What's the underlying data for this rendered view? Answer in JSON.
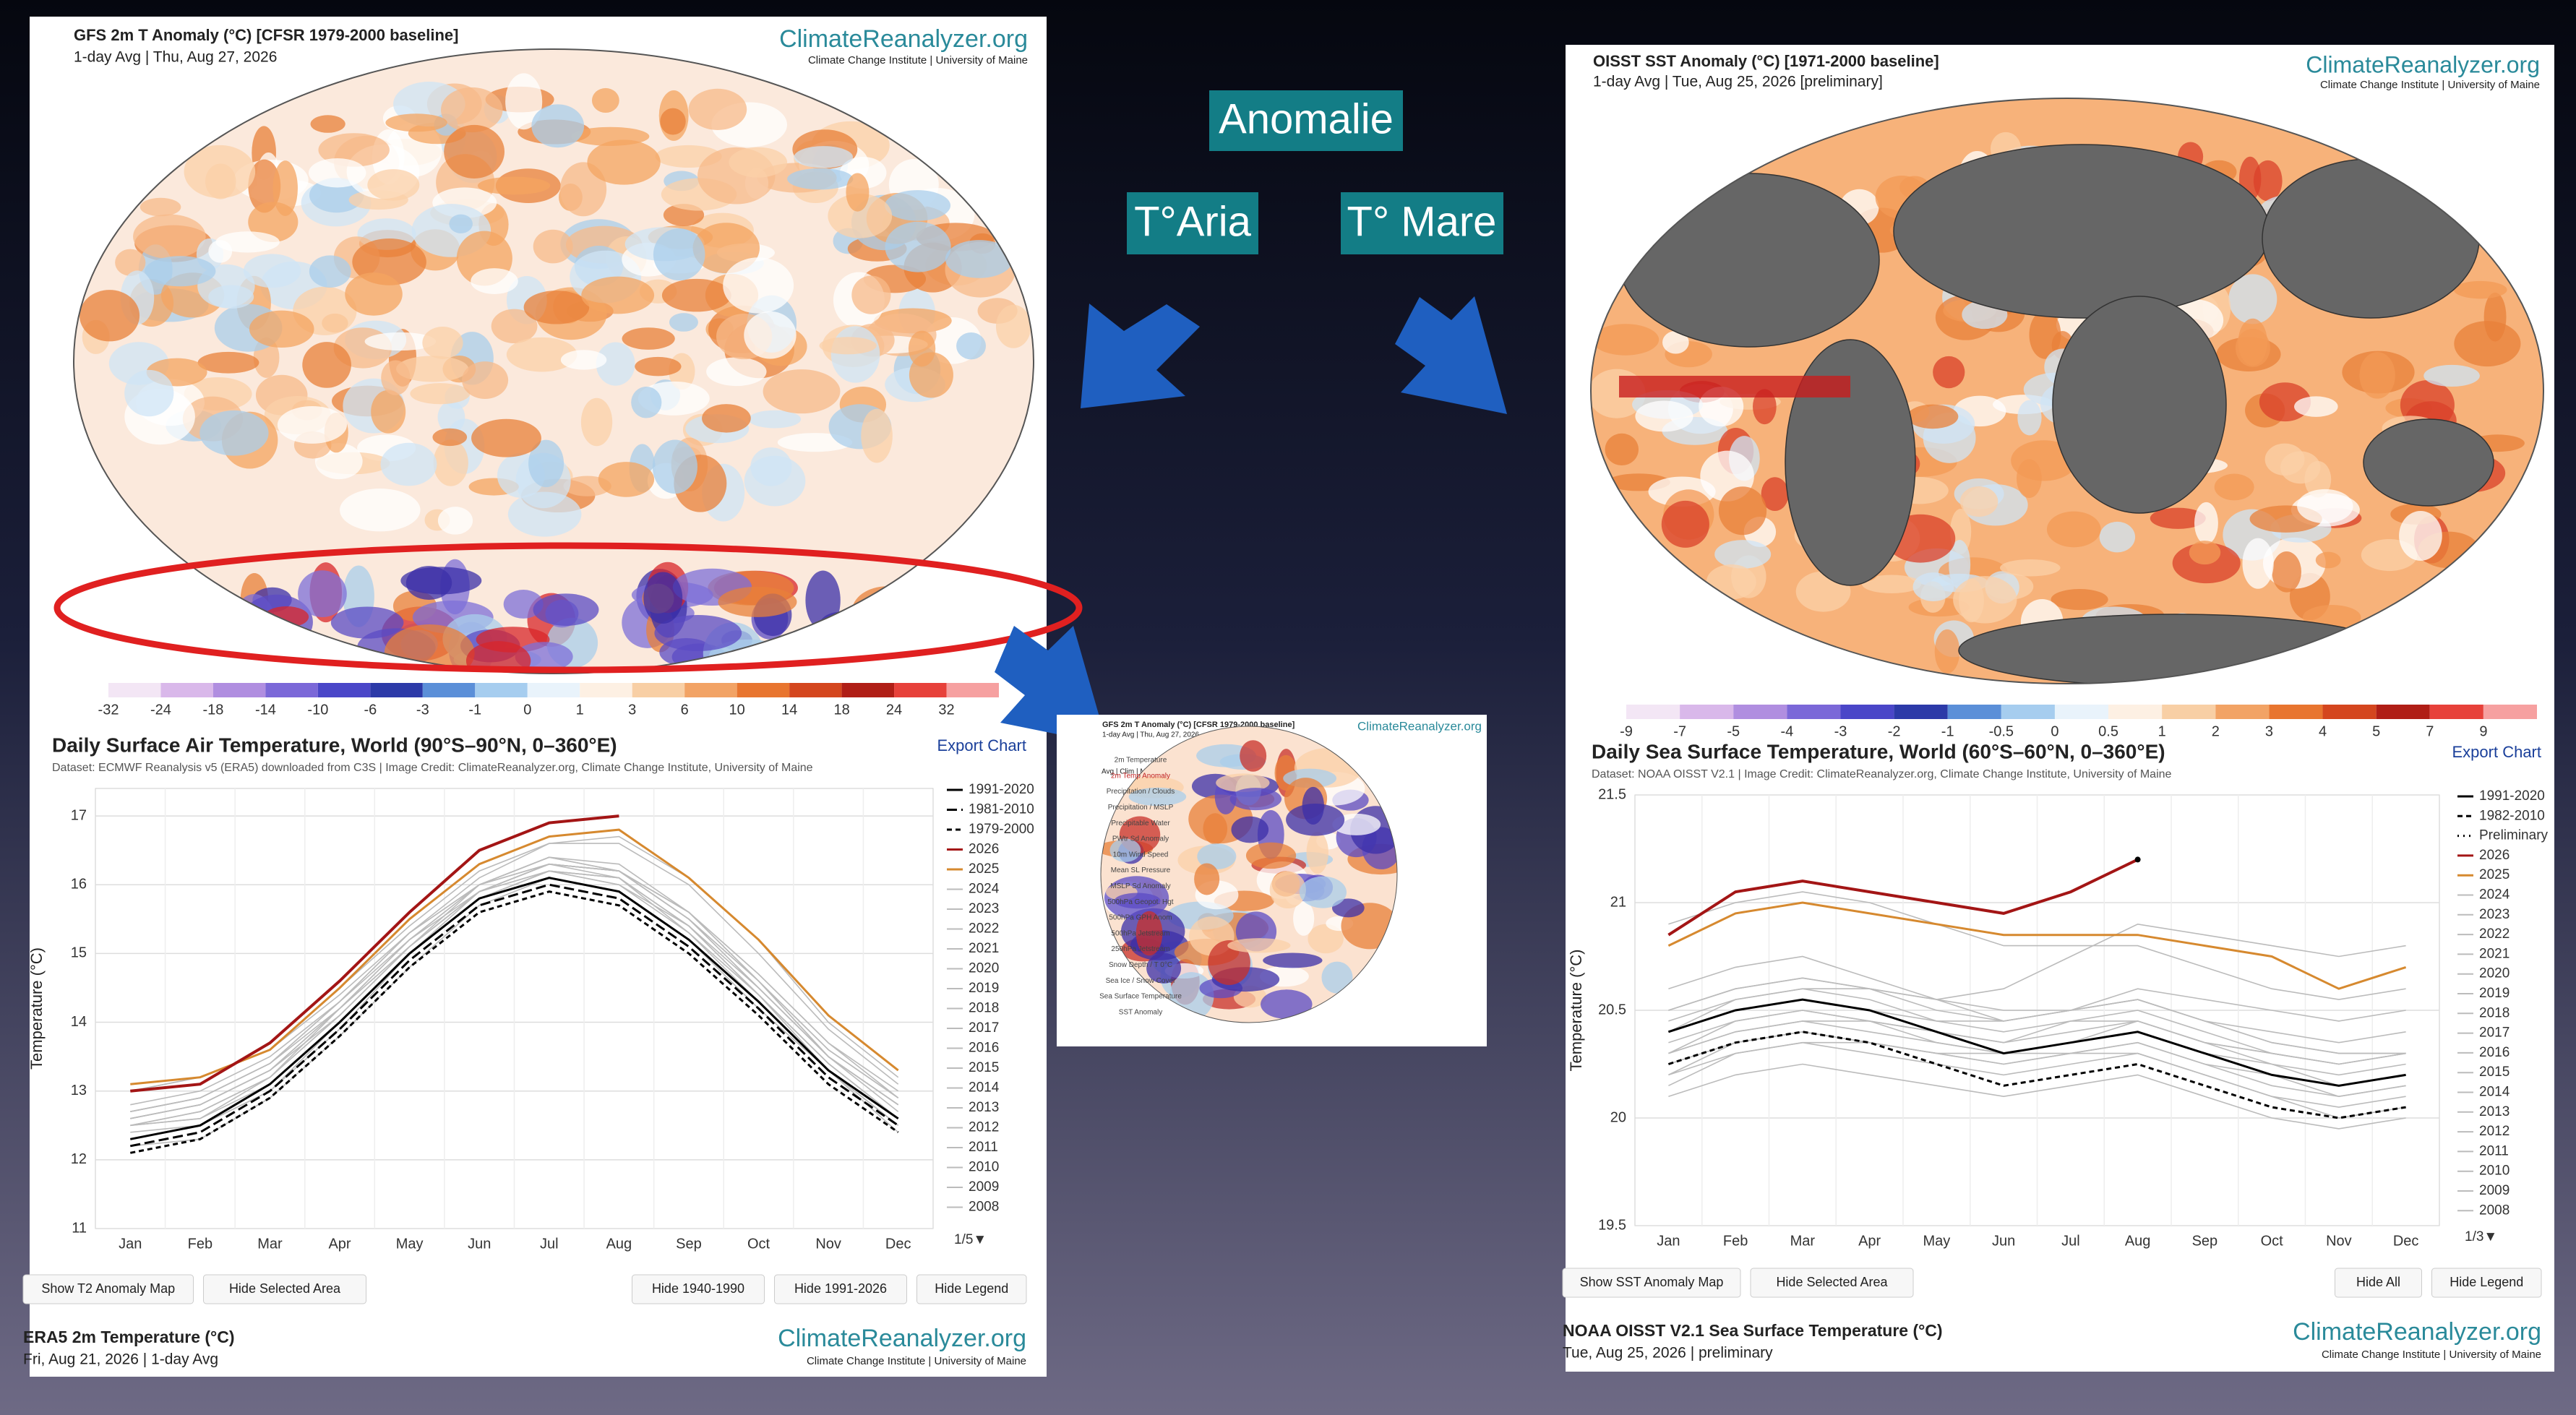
{
  "slide": {
    "anomalie": "Anomalie",
    "aria": "T°Aria",
    "mare": "T° Mare"
  },
  "left_map": {
    "title": "GFS 2m T Anomaly (°C) [CFSR 1979-2000 baseline]",
    "subtitle": "1-day Avg | Thu, Aug 27, 2026",
    "logo": "ClimateReanalyzer.org",
    "logo_sub": "Climate Change Institute | University of Maine",
    "colorbar": [
      -32,
      -24,
      -18,
      -14,
      -10,
      -6,
      -3,
      -1,
      0,
      1,
      3,
      6,
      10,
      14,
      18,
      24,
      32
    ]
  },
  "right_map": {
    "title": "OISST SST Anomaly (°C) [1971-2000 baseline]",
    "subtitle": "1-day Avg | Tue, Aug 25, 2026 [preliminary]",
    "logo": "ClimateReanalyzer.org",
    "logo_sub": "Climate Change Institute | University of Maine",
    "colorbar": [
      -9,
      -7,
      -5,
      -4,
      -3,
      -2,
      -1,
      -0.5,
      0,
      0.5,
      1,
      2,
      3,
      4,
      5,
      7,
      9
    ]
  },
  "mini": {
    "title": "GFS 2m T Anomaly (°C) [CFSR 1979-2000 baseline]",
    "subtitle": "1-day Avg | Thu, Aug 27, 2026",
    "logo": "ClimateReanalyzer.org",
    "tabs": "Avg | Clim | Max | Min",
    "menu": [
      "2m Temperature",
      "2m Temp Anomaly",
      "Precipitation / Clouds",
      "Precipitation / MSLP",
      "Precipitable Water",
      "PWtr Sd Anomaly",
      "10m Wind Speed",
      "Mean SL Pressure",
      "MSLP Sd Anomaly",
      "500hPa Geopot. Hgt",
      "500hPa GPH Anom",
      "500hPa Jetstream",
      "250hPa Jetstream",
      "Snow Depth / T 0°C",
      "Sea Ice / Snow Cover",
      "Sea Surface Temperature",
      "SST Anomaly"
    ]
  },
  "left_panel": {
    "export": "Export Chart",
    "pager": "1/5▼",
    "buttons": [
      "Show T2 Anomaly Map",
      "Hide Selected Area",
      "Hide 1940-1990",
      "Hide 1991-2026",
      "Hide Legend"
    ],
    "footer_title": "ERA5 2m Temperature (°C)",
    "footer_sub": "Fri, Aug 21, 2026 | 1-day Avg",
    "logo": "ClimateReanalyzer.org",
    "logo_sub": "Climate Change Institute | University of Maine"
  },
  "right_panel": {
    "export": "Export Chart",
    "pager": "1/3▼",
    "buttons": [
      "Show SST Anomaly Map",
      "Hide Selected Area",
      "Hide All",
      "Hide Legend"
    ],
    "footer_title": "NOAA OISST V2.1 Sea Surface Temperature (°C)",
    "footer_sub": "Tue, Aug 25, 2026 | preliminary",
    "logo": "ClimateReanalyzer.org",
    "logo_sub": "Climate Change Institute | University of Maine"
  },
  "chart_data": [
    {
      "type": "line",
      "title": "Daily Surface Air Temperature, World (90°S–90°N, 0–360°E)",
      "subtitle": "Dataset: ECMWF Reanalysis v5 (ERA5) downloaded from C3S | Image Credit: ClimateReanalyzer.org, Climate Change Institute, University of Maine",
      "y_label": "Temperature (°C)",
      "categories": [
        "Jan",
        "Feb",
        "Mar",
        "Apr",
        "May",
        "Jun",
        "Jul",
        "Aug",
        "Sep",
        "Oct",
        "Nov",
        "Dec"
      ],
      "ylim": [
        11,
        17.4
      ],
      "yticks": [
        11,
        12,
        13,
        14,
        15,
        16,
        17
      ],
      "grid": true,
      "series": [
        {
          "name": "1991-2020",
          "color": "#000000",
          "style": "solid",
          "values": [
            12.3,
            12.5,
            13.1,
            14.0,
            15.0,
            15.8,
            16.1,
            15.9,
            15.2,
            14.3,
            13.3,
            12.6
          ]
        },
        {
          "name": "1981-2010",
          "color": "#000000",
          "style": "longdash",
          "values": [
            12.2,
            12.4,
            13.0,
            13.9,
            14.9,
            15.7,
            16.0,
            15.8,
            15.1,
            14.2,
            13.2,
            12.5
          ]
        },
        {
          "name": "1979-2000",
          "color": "#000000",
          "style": "dashed",
          "values": [
            12.1,
            12.3,
            12.9,
            13.8,
            14.8,
            15.6,
            15.9,
            15.7,
            15.0,
            14.1,
            13.1,
            12.4
          ]
        },
        {
          "name": "2026",
          "color": "#a31515",
          "style": "solid",
          "values": [
            13.0,
            13.1,
            13.7,
            14.6,
            15.6,
            16.5,
            16.9,
            17.0,
            null,
            null,
            null,
            null
          ]
        },
        {
          "name": "2025",
          "color": "#d6892f",
          "style": "solid",
          "values": [
            13.1,
            13.2,
            13.6,
            14.5,
            15.5,
            16.3,
            16.7,
            16.8,
            16.1,
            15.2,
            14.1,
            13.3
          ]
        },
        {
          "name": "2024",
          "color": "#bbbbbb",
          "style": "solid",
          "values": [
            13.0,
            13.2,
            13.6,
            14.5,
            15.4,
            16.2,
            16.6,
            16.6,
            16.0,
            15.0,
            13.9,
            13.1
          ]
        },
        {
          "name": "2023",
          "color": "#bbbbbb",
          "style": "solid",
          "values": [
            12.7,
            12.9,
            13.4,
            14.3,
            15.3,
            16.1,
            16.6,
            16.7,
            16.1,
            15.2,
            14.0,
            13.2
          ]
        },
        {
          "name": "2022",
          "color": "#bbbbbb",
          "style": "solid",
          "values": [
            12.6,
            12.8,
            13.3,
            14.2,
            15.2,
            16.0,
            16.4,
            16.2,
            15.5,
            14.6,
            13.5,
            12.8
          ]
        },
        {
          "name": "2021",
          "color": "#bbbbbb",
          "style": "solid",
          "values": [
            12.5,
            12.7,
            13.2,
            14.1,
            15.1,
            16.0,
            16.3,
            16.2,
            15.5,
            14.5,
            13.5,
            12.8
          ]
        },
        {
          "name": "2020",
          "color": "#bbbbbb",
          "style": "solid",
          "values": [
            12.8,
            13.0,
            13.5,
            14.3,
            15.3,
            16.0,
            16.3,
            16.2,
            15.6,
            14.7,
            13.7,
            12.9
          ]
        },
        {
          "name": "2019",
          "color": "#bbbbbb",
          "style": "solid",
          "values": [
            12.7,
            12.9,
            13.4,
            14.3,
            15.2,
            16.0,
            16.4,
            16.2,
            15.6,
            14.6,
            13.6,
            12.9
          ]
        },
        {
          "name": "2018",
          "color": "#bbbbbb",
          "style": "solid",
          "values": [
            12.5,
            12.7,
            13.2,
            14.2,
            15.1,
            15.9,
            16.3,
            16.2,
            15.5,
            14.6,
            13.5,
            12.8
          ]
        },
        {
          "name": "2017",
          "color": "#bbbbbb",
          "style": "solid",
          "values": [
            12.7,
            12.9,
            13.4,
            14.2,
            15.2,
            15.9,
            16.3,
            16.2,
            15.5,
            14.5,
            13.5,
            12.8
          ]
        },
        {
          "name": "2016",
          "color": "#bbbbbb",
          "style": "solid",
          "values": [
            13.0,
            13.2,
            13.6,
            14.4,
            15.3,
            16.0,
            16.4,
            16.3,
            15.6,
            14.6,
            13.6,
            12.9
          ]
        },
        {
          "name": "2015",
          "color": "#bbbbbb",
          "style": "solid",
          "values": [
            12.6,
            12.8,
            13.3,
            14.1,
            15.1,
            15.9,
            16.3,
            16.2,
            15.6,
            14.7,
            13.7,
            13.0
          ]
        },
        {
          "name": "2014",
          "color": "#bbbbbb",
          "style": "solid",
          "values": [
            12.5,
            12.6,
            13.2,
            14.1,
            15.1,
            15.9,
            16.2,
            16.1,
            15.4,
            14.5,
            13.5,
            12.7
          ]
        },
        {
          "name": "2013",
          "color": "#bbbbbb",
          "style": "solid",
          "values": [
            12.5,
            12.6,
            13.1,
            14.0,
            15.0,
            15.8,
            16.2,
            16.0,
            15.4,
            14.4,
            13.4,
            12.6
          ]
        },
        {
          "name": "2012",
          "color": "#bbbbbb",
          "style": "solid",
          "values": [
            12.3,
            12.5,
            13.1,
            14.0,
            15.0,
            15.9,
            16.2,
            16.1,
            15.4,
            14.4,
            13.4,
            12.6
          ]
        },
        {
          "name": "2011",
          "color": "#bbbbbb",
          "style": "solid",
          "values": [
            12.3,
            12.5,
            13.0,
            13.9,
            15.0,
            15.8,
            16.2,
            16.0,
            15.3,
            14.3,
            13.3,
            12.5
          ]
        },
        {
          "name": "2010",
          "color": "#bbbbbb",
          "style": "solid",
          "values": [
            12.6,
            12.8,
            13.3,
            14.2,
            15.1,
            15.9,
            16.3,
            16.1,
            15.3,
            14.4,
            13.3,
            12.4
          ]
        },
        {
          "name": "2009",
          "color": "#bbbbbb",
          "style": "solid",
          "values": [
            12.4,
            12.5,
            13.0,
            14.0,
            15.0,
            15.8,
            16.2,
            16.1,
            15.4,
            14.4,
            13.4,
            12.6
          ]
        },
        {
          "name": "2008",
          "color": "#bbbbbb",
          "style": "solid",
          "values": [
            12.2,
            12.3,
            12.9,
            13.8,
            14.8,
            15.7,
            16.1,
            15.9,
            15.2,
            14.2,
            13.3,
            12.5
          ]
        }
      ]
    },
    {
      "type": "line",
      "title": "Daily Sea Surface Temperature, World (60°S–60°N, 0–360°E)",
      "subtitle": "Dataset: NOAA OISST V2.1 | Image Credit: ClimateReanalyzer.org, Climate Change Institute, University of Maine",
      "y_label": "Temperature (°C)",
      "categories": [
        "Jan",
        "Feb",
        "Mar",
        "Apr",
        "May",
        "Jun",
        "Jul",
        "Aug",
        "Sep",
        "Oct",
        "Nov",
        "Dec"
      ],
      "ylim": [
        19.5,
        21.5
      ],
      "yticks": [
        19.5,
        20,
        20.5,
        21,
        21.5
      ],
      "grid": true,
      "series": [
        {
          "name": "1991-2020",
          "color": "#000000",
          "style": "solid",
          "values": [
            20.4,
            20.5,
            20.55,
            20.5,
            20.4,
            20.3,
            20.35,
            20.4,
            20.3,
            20.2,
            20.15,
            20.2
          ]
        },
        {
          "name": "1982-2010",
          "color": "#000000",
          "style": "dashed",
          "values": [
            20.25,
            20.35,
            20.4,
            20.35,
            20.25,
            20.15,
            20.2,
            20.25,
            20.15,
            20.05,
            20.0,
            20.05
          ]
        },
        {
          "name": "Preliminary",
          "color": "#000000",
          "style": "dots",
          "values": [
            null,
            null,
            null,
            null,
            null,
            null,
            null,
            21.2,
            null,
            null,
            null,
            null
          ]
        },
        {
          "name": "2026",
          "color": "#a31515",
          "style": "solid",
          "values": [
            20.85,
            21.05,
            21.1,
            21.05,
            21.0,
            20.95,
            21.05,
            21.2,
            null,
            null,
            null,
            null
          ]
        },
        {
          "name": "2025",
          "color": "#d6892f",
          "style": "solid",
          "values": [
            20.8,
            20.95,
            21.0,
            20.95,
            20.9,
            20.85,
            20.85,
            20.85,
            20.8,
            20.75,
            20.6,
            20.7
          ]
        },
        {
          "name": "2024",
          "color": "#bbbbbb",
          "style": "solid",
          "values": [
            20.9,
            21.0,
            21.05,
            21.0,
            20.9,
            20.8,
            20.8,
            20.8,
            20.7,
            20.6,
            20.55,
            20.6
          ]
        },
        {
          "name": "2023",
          "color": "#bbbbbb",
          "style": "solid",
          "values": [
            20.4,
            20.55,
            20.6,
            20.6,
            20.55,
            20.6,
            20.75,
            20.9,
            20.85,
            20.8,
            20.75,
            20.8
          ]
        },
        {
          "name": "2022",
          "color": "#bbbbbb",
          "style": "solid",
          "values": [
            20.3,
            20.45,
            20.5,
            20.45,
            20.35,
            20.3,
            20.35,
            20.4,
            20.3,
            20.2,
            20.15,
            20.2
          ]
        },
        {
          "name": "2021",
          "color": "#bbbbbb",
          "style": "solid",
          "values": [
            20.3,
            20.4,
            20.45,
            20.4,
            20.35,
            20.3,
            20.35,
            20.4,
            20.3,
            20.25,
            20.15,
            20.2
          ]
        },
        {
          "name": "2020",
          "color": "#bbbbbb",
          "style": "solid",
          "values": [
            20.5,
            20.6,
            20.65,
            20.6,
            20.5,
            20.45,
            20.5,
            20.55,
            20.45,
            20.35,
            20.3,
            20.3
          ]
        },
        {
          "name": "2019",
          "color": "#bbbbbb",
          "style": "solid",
          "values": [
            20.5,
            20.6,
            20.65,
            20.6,
            20.55,
            20.5,
            20.5,
            20.55,
            20.45,
            20.4,
            20.35,
            20.4
          ]
        },
        {
          "name": "2018",
          "color": "#bbbbbb",
          "style": "solid",
          "values": [
            20.35,
            20.45,
            20.5,
            20.45,
            20.4,
            20.35,
            20.4,
            20.45,
            20.35,
            20.25,
            20.2,
            20.25
          ]
        },
        {
          "name": "2017",
          "color": "#bbbbbb",
          "style": "solid",
          "values": [
            20.45,
            20.55,
            20.6,
            20.55,
            20.45,
            20.4,
            20.45,
            20.45,
            20.35,
            20.3,
            20.25,
            20.3
          ]
        },
        {
          "name": "2016",
          "color": "#bbbbbb",
          "style": "solid",
          "values": [
            20.6,
            20.7,
            20.75,
            20.65,
            20.55,
            20.45,
            20.5,
            20.55,
            20.45,
            20.35,
            20.3,
            20.3
          ]
        },
        {
          "name": "2015",
          "color": "#bbbbbb",
          "style": "solid",
          "values": [
            20.4,
            20.5,
            20.55,
            20.5,
            20.45,
            20.45,
            20.5,
            20.6,
            20.55,
            20.5,
            20.45,
            20.5
          ]
        },
        {
          "name": "2014",
          "color": "#bbbbbb",
          "style": "solid",
          "values": [
            20.3,
            20.4,
            20.45,
            20.45,
            20.4,
            20.35,
            20.45,
            20.5,
            20.4,
            20.3,
            20.25,
            20.3
          ]
        },
        {
          "name": "2013",
          "color": "#bbbbbb",
          "style": "solid",
          "values": [
            20.25,
            20.35,
            20.4,
            20.35,
            20.3,
            20.25,
            20.3,
            20.35,
            20.25,
            20.15,
            20.1,
            20.15
          ]
        },
        {
          "name": "2012",
          "color": "#bbbbbb",
          "style": "solid",
          "values": [
            20.2,
            20.35,
            20.4,
            20.35,
            20.3,
            20.25,
            20.3,
            20.35,
            20.25,
            20.2,
            20.1,
            20.15
          ]
        },
        {
          "name": "2011",
          "color": "#bbbbbb",
          "style": "solid",
          "values": [
            20.15,
            20.3,
            20.35,
            20.3,
            20.25,
            20.2,
            20.25,
            20.3,
            20.2,
            20.1,
            20.05,
            20.1
          ]
        },
        {
          "name": "2010",
          "color": "#bbbbbb",
          "style": "solid",
          "values": [
            20.4,
            20.5,
            20.55,
            20.5,
            20.4,
            20.3,
            20.3,
            20.3,
            20.2,
            20.1,
            20.0,
            20.05
          ]
        },
        {
          "name": "2009",
          "color": "#bbbbbb",
          "style": "solid",
          "values": [
            20.2,
            20.3,
            20.35,
            20.35,
            20.3,
            20.3,
            20.35,
            20.45,
            20.35,
            20.3,
            20.25,
            20.3
          ]
        },
        {
          "name": "2008",
          "color": "#bbbbbb",
          "style": "solid",
          "values": [
            20.1,
            20.2,
            20.25,
            20.2,
            20.15,
            20.1,
            20.15,
            20.2,
            20.1,
            20.0,
            19.95,
            20.0
          ]
        }
      ]
    }
  ]
}
